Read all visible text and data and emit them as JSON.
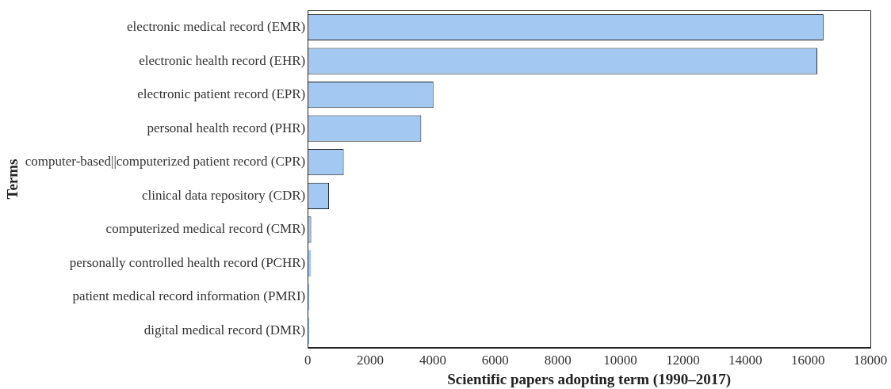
{
  "chart_data": {
    "type": "bar",
    "orientation": "horizontal",
    "xlabel": "Scientific papers adopting term (1990–2017)",
    "ylabel": "Terms",
    "categories": [
      "electronic medical record (EMR)",
      "electronic health record (EHR)",
      "electronic patient record (EPR)",
      "personal health record (PHR)",
      "computer-based||computerized patient record (CPR)",
      "clinical data repository (CDR)",
      "computerized medical record (CMR)",
      "personally controlled health record (PCHR)",
      "patient medical record information (PMRI)",
      "digital medical record (DMR)"
    ],
    "values": [
      16500,
      16300,
      4020,
      3630,
      1150,
      680,
      110,
      100,
      50,
      50
    ],
    "color": "#a3c8f2",
    "xlim": [
      0,
      18000
    ],
    "xticks": [
      0,
      2000,
      4000,
      6000,
      8000,
      10000,
      12000,
      14000,
      16000,
      18000
    ],
    "grid": false,
    "legend": false
  }
}
